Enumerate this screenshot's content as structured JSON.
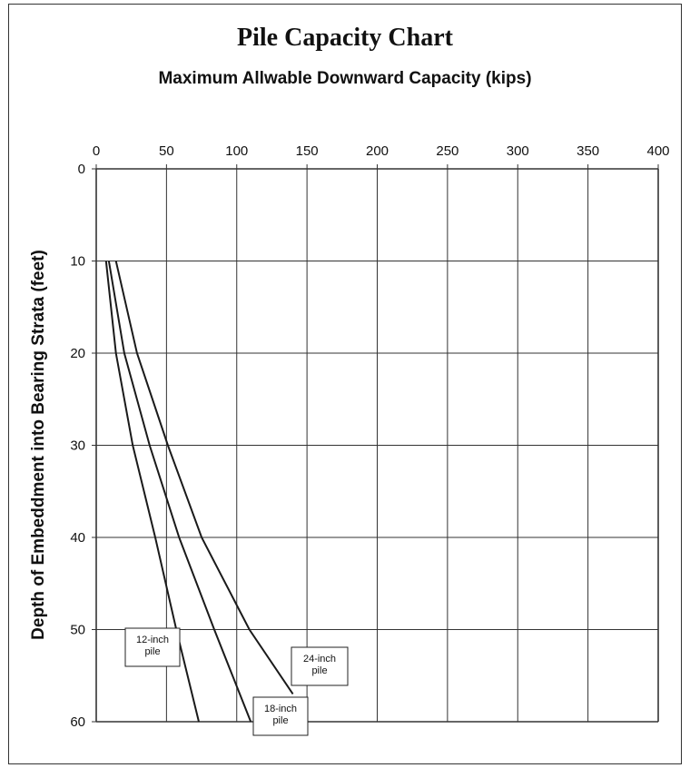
{
  "chart_data": {
    "type": "line",
    "title": "Pile Capacity Chart",
    "subtitle": "Maximum Allwable Downward Capacity (kips)",
    "xlabel": "",
    "ylabel": "Depth of Embeddment into Bearing Strata (feet)",
    "xlim": [
      0,
      400
    ],
    "ylim": [
      0,
      60
    ],
    "y_inverted": true,
    "x_axis_position": "top",
    "x_ticks": [
      0,
      50,
      100,
      150,
      200,
      250,
      300,
      350,
      400
    ],
    "y_ticks": [
      0,
      10,
      20,
      30,
      40,
      50,
      60
    ],
    "grid": true,
    "series": [
      {
        "name": "12-inch pile",
        "points": [
          [
            7,
            10
          ],
          [
            14,
            20
          ],
          [
            26,
            30
          ],
          [
            42,
            40
          ],
          [
            57,
            50
          ],
          [
            73,
            60
          ]
        ]
      },
      {
        "name": "18-inch pile",
        "points": [
          [
            9,
            10
          ],
          [
            20,
            20
          ],
          [
            38,
            30
          ],
          [
            59,
            40
          ],
          [
            84,
            50
          ],
          [
            110,
            60
          ]
        ]
      },
      {
        "name": "24-inch pile",
        "points": [
          [
            14,
            10
          ],
          [
            29,
            20
          ],
          [
            51,
            30
          ],
          [
            75,
            40
          ],
          [
            109,
            50
          ],
          [
            140,
            57
          ]
        ]
      }
    ],
    "annotations": [
      {
        "series": "12-inch pile",
        "lines": [
          "12-inch",
          "pile"
        ]
      },
      {
        "series": "18-inch pile",
        "lines": [
          "18-inch",
          "pile"
        ]
      },
      {
        "series": "24-inch pile",
        "lines": [
          "24-inch",
          "pile"
        ]
      }
    ],
    "colors": {
      "line": "#1a1a1a",
      "grid": "#333333"
    }
  }
}
